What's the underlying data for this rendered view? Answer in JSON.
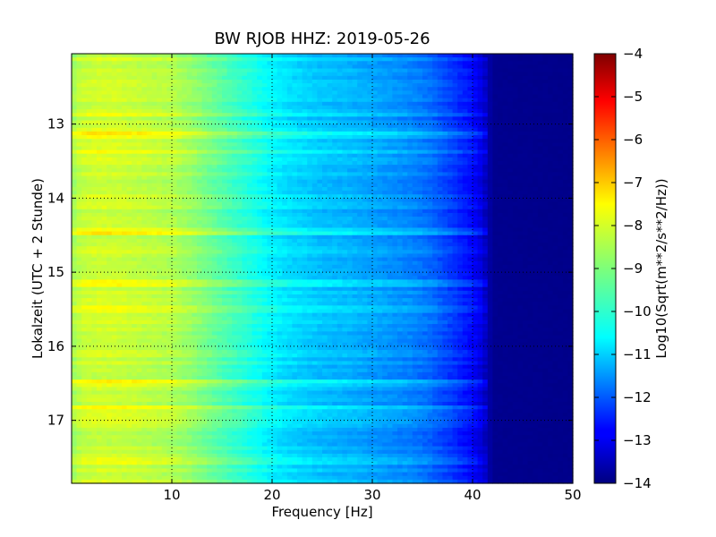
{
  "chart_data": {
    "type": "heatmap",
    "title": "BW RJOB HHZ: 2019-05-26",
    "xlabel": "Frequency [Hz]",
    "ylabel": "Lokalzeit (UTC + 2 Stunde)",
    "xlim": [
      0,
      50
    ],
    "ylim": [
      17.85,
      12.05
    ],
    "x_ticks": [
      10,
      20,
      30,
      40,
      50
    ],
    "y_ticks": [
      13,
      14,
      15,
      16,
      17
    ],
    "grid": true,
    "grid_style": "dotted",
    "colormap": "jet",
    "colorbar": {
      "label": "Log10(Sqrt(m**2/s**2/Hz))",
      "range": [
        -14,
        -4
      ],
      "ticks": [
        -4,
        -5,
        -6,
        -7,
        -8,
        -9,
        -10,
        -11,
        -12,
        -13,
        -14
      ]
    },
    "frequency_profile_hz": [
      0,
      1,
      3,
      5,
      8,
      10,
      12,
      15,
      18,
      20,
      22,
      25,
      28,
      30,
      32,
      34,
      36,
      38,
      40,
      41,
      41.5,
      42,
      50
    ],
    "frequency_profile_value": [
      -8.7,
      -8.3,
      -8.2,
      -8.25,
      -8.4,
      -8.5,
      -8.8,
      -9.4,
      -9.95,
      -10.35,
      -10.6,
      -10.85,
      -11.0,
      -11.15,
      -11.3,
      -11.45,
      -11.75,
      -12.2,
      -12.7,
      -13.1,
      -13.5,
      -13.85,
      -13.9
    ],
    "bright_bands": [
      {
        "time": 12.88,
        "level": 0.5
      },
      {
        "time": 13.15,
        "level": 1.0
      },
      {
        "time": 13.38,
        "level": 0.7
      },
      {
        "time": 14.45,
        "level": 0.9
      },
      {
        "time": 15.15,
        "level": 0.8
      },
      {
        "time": 15.5,
        "level": 0.6
      },
      {
        "time": 16.5,
        "level": 0.7
      },
      {
        "time": 16.82,
        "level": 0.6
      },
      {
        "time": 17.55,
        "level": 0.5
      }
    ]
  }
}
